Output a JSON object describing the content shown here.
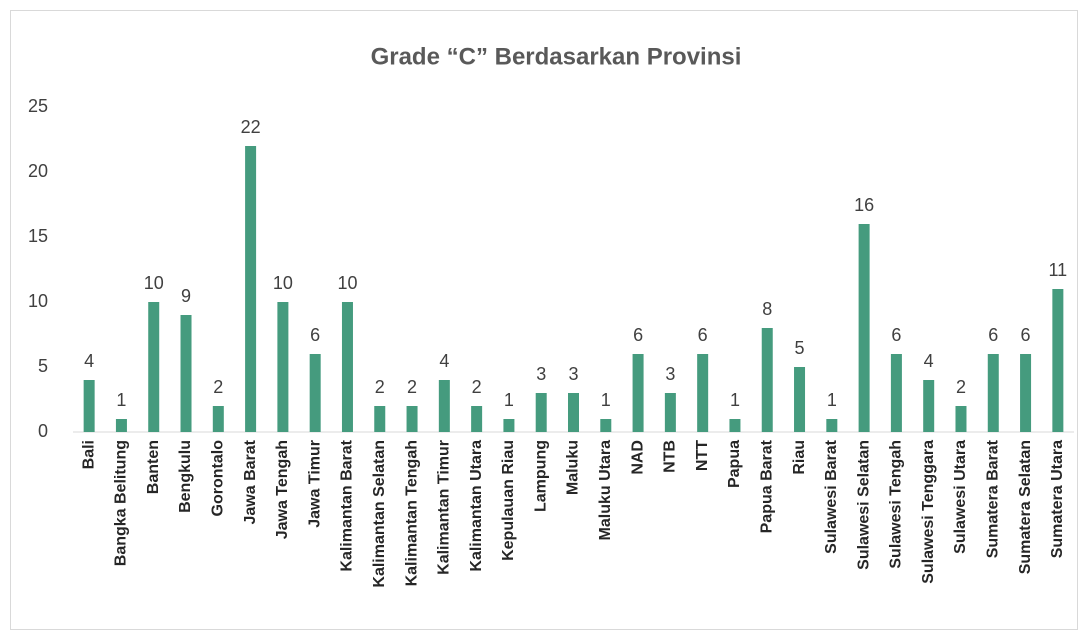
{
  "chart_data": {
    "type": "bar",
    "title": "Grade “C” Berdasarkan Provinsi",
    "categories": [
      "Bali",
      "Bangka Belitung",
      "Banten",
      "Bengkulu",
      "Gorontalo",
      "Jawa Barat",
      "Jawa Tengah",
      "Jawa Timur",
      "Kalimantan Barat",
      "Kalimantan Selatan",
      "Kalimantan Tengah",
      "Kalimantan Timur",
      "Kalimantan Utara",
      "Kepulauan Riau",
      "Lampung",
      "Maluku",
      "Maluku Utara",
      "NAD",
      "NTB",
      "NTT",
      "Papua",
      "Papua Barat",
      "Riau",
      "Sulawesi Barat",
      "Sulawesi Selatan",
      "Sulawesi Tengah",
      "Sulawesi Tenggara",
      "Sulawesi Utara",
      "Sumatera Barat",
      "Sumatera Selatan",
      "Sumatera Utara"
    ],
    "values": [
      4,
      1,
      10,
      9,
      2,
      22,
      10,
      6,
      10,
      2,
      2,
      4,
      2,
      1,
      3,
      3,
      1,
      6,
      3,
      6,
      1,
      8,
      5,
      1,
      16,
      6,
      4,
      2,
      6,
      6,
      11
    ],
    "color": "#459b7e",
    "ylim": [
      0,
      25
    ],
    "yticks": [
      0,
      5,
      10,
      15,
      20,
      25
    ],
    "grid": false,
    "data_labels": true
  }
}
